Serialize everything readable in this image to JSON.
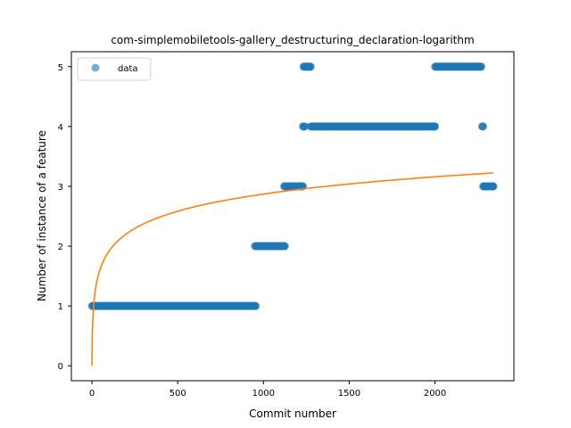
{
  "chart_data": {
    "type": "scatter",
    "title": "com-simplemobiletools-gallery_destructuring_declaration-logarithm",
    "xlabel": "Commit number",
    "ylabel": "Number of instance of a feature",
    "xlim": [
      -120,
      2460
    ],
    "ylim": [
      -0.25,
      5.25
    ],
    "xticks": [
      0,
      500,
      1000,
      1500,
      2000
    ],
    "yticks": [
      0,
      1,
      2,
      3,
      4,
      5
    ],
    "grid": false,
    "legend": {
      "position": "top-left",
      "entries": [
        "data"
      ]
    },
    "colors": {
      "data": "#1f77b4",
      "fit": "#ff7f0e"
    },
    "series": [
      {
        "name": "data",
        "kind": "scatter",
        "segments": [
          {
            "x_start": 0,
            "x_end": 955,
            "y": 1
          },
          {
            "x_start": 950,
            "x_end": 1125,
            "y": 2
          },
          {
            "x_start": 1120,
            "x_end": 1230,
            "y": 3
          },
          {
            "x_start": 1233,
            "x_end": 1275,
            "y": 5
          },
          {
            "x_start": 1230,
            "x_end": 1240,
            "y": 4
          },
          {
            "x_start": 1275,
            "x_end": 2000,
            "y": 4
          },
          {
            "x_start": 2000,
            "x_end": 2270,
            "y": 5
          },
          {
            "x_start": 2275,
            "x_end": 2280,
            "y": 4
          },
          {
            "x_start": 2280,
            "x_end": 2340,
            "y": 3
          }
        ]
      },
      {
        "kind": "line",
        "fit": {
          "form": "a*ln(x+1)+b",
          "a": 0.4155,
          "b": 0.0
        },
        "x_range": [
          0,
          2340
        ]
      }
    ]
  }
}
